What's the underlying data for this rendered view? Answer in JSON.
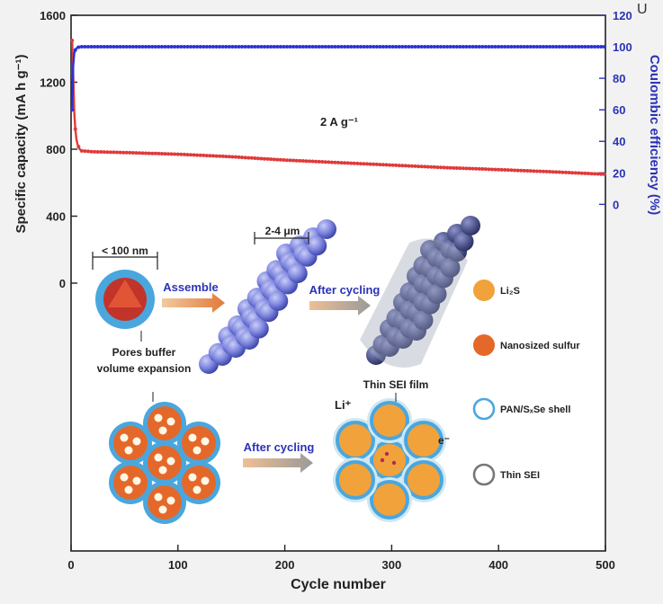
{
  "chart_data": {
    "type": "line",
    "title": "",
    "annotation": "2 A g⁻¹",
    "xlabel": "Cycle number",
    "ylabel_left": "Specific capacity (mA h g⁻¹)",
    "ylabel_right": "Coulombic efficiency (%)",
    "xlim": [
      0,
      500
    ],
    "ylim_left": [
      -1600,
      1600
    ],
    "ylim_right": [
      -220,
      120
    ],
    "x_ticks": [
      "0",
      "100",
      "200",
      "300",
      "400",
      "500"
    ],
    "y_left_ticks": [
      "1600",
      "1200",
      "800",
      "400",
      "0"
    ],
    "y_right_ticks": [
      "120",
      "100",
      "80",
      "60",
      "40",
      "20",
      "0"
    ],
    "y_left_tick_values": [
      1600,
      1200,
      800,
      400,
      0
    ],
    "y_right_tick_values": [
      120,
      100,
      80,
      60,
      40,
      20,
      0
    ],
    "series": [
      {
        "name": "Specific capacity",
        "axis": "left",
        "color": "#e03a3a",
        "x": [
          1,
          2,
          3,
          4,
          5,
          6,
          8,
          10,
          20,
          50,
          100,
          150,
          200,
          250,
          300,
          350,
          400,
          450,
          500
        ],
        "values": [
          1450,
          1250,
          1020,
          920,
          860,
          830,
          800,
          790,
          785,
          780,
          770,
          755,
          735,
          720,
          705,
          690,
          678,
          665,
          650
        ]
      },
      {
        "name": "Coulombic efficiency",
        "axis": "right",
        "color": "#2b33d6",
        "x": [
          1,
          2,
          3,
          4,
          5,
          6,
          8,
          10,
          20,
          50,
          100,
          150,
          200,
          250,
          300,
          350,
          400,
          450,
          500
        ],
        "values": [
          60,
          88,
          96,
          98,
          99,
          99.5,
          100,
          100,
          100,
          100,
          100,
          100,
          100,
          100,
          100,
          100,
          100,
          100,
          100
        ]
      }
    ]
  },
  "schematic": {
    "size_small": "< 100 nm",
    "size_large": "2-4 μm",
    "assemble": "Assemble",
    "after_cycling_top": "After cycling",
    "after_cycling_bottom": "After cycling",
    "pores_line1": "Pores buffer",
    "pores_line2": "volume expansion",
    "thin_sei_film": "Thin SEI film",
    "li_ion": "Li⁺",
    "electron": "e⁻",
    "legend": [
      {
        "label": "Li₂S",
        "color": "#f2a23a",
        "kind": "filled"
      },
      {
        "label": "Nanosized sulfur",
        "color": "#e4682a",
        "kind": "filled"
      },
      {
        "label": "PAN/SₓSe shell",
        "color": "#4aa7dd",
        "kind": "ring"
      },
      {
        "label": "Thin SEI",
        "color": "#777777",
        "kind": "ring"
      }
    ]
  },
  "corner_text": "U"
}
